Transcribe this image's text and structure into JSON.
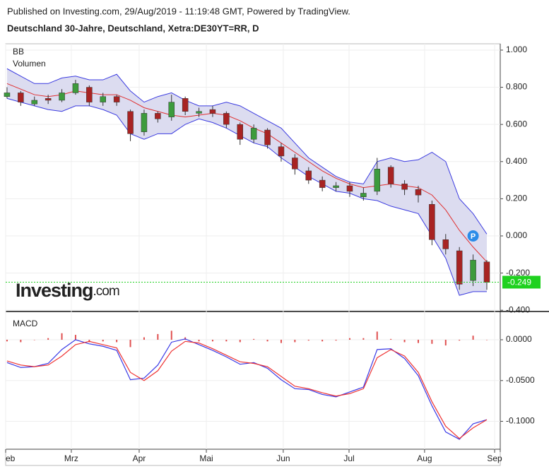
{
  "header": {
    "published": "Published on Investing.com, 29/Aug/2019 - 11:19:48 GMT, Powered by TradingView.",
    "symbol": "Deutschland 30-Jahre, Deutschland, Xetra:DE30YT=RR, D"
  },
  "logo": {
    "brand": "Investing",
    "suffix": ".com"
  },
  "chart_data": [
    {
      "type": "candlestick",
      "labels": [
        "BB",
        "Volumen"
      ],
      "x": [
        0,
        1,
        2,
        3,
        4,
        5,
        6,
        7,
        8,
        9,
        10,
        11,
        12,
        13,
        14,
        15,
        16,
        17,
        18,
        19,
        20,
        21,
        22,
        23,
        24,
        25,
        26,
        27,
        28,
        29,
        30,
        31,
        32,
        33,
        34,
        35
      ],
      "open": [
        0.75,
        0.77,
        0.71,
        0.74,
        0.73,
        0.77,
        0.8,
        0.72,
        0.75,
        0.67,
        0.56,
        0.66,
        0.64,
        0.74,
        0.66,
        0.68,
        0.66,
        0.6,
        0.52,
        0.57,
        0.48,
        0.42,
        0.35,
        0.3,
        0.26,
        0.27,
        0.21,
        0.24,
        0.37,
        0.28,
        0.25,
        0.17,
        -0.02,
        -0.08,
        -0.24,
        -0.14
      ],
      "high": [
        0.8,
        0.78,
        0.75,
        0.76,
        0.79,
        0.84,
        0.81,
        0.77,
        0.76,
        0.68,
        0.68,
        0.67,
        0.76,
        0.75,
        0.69,
        0.7,
        0.67,
        0.61,
        0.6,
        0.58,
        0.5,
        0.44,
        0.37,
        0.32,
        0.29,
        0.29,
        0.26,
        0.42,
        0.38,
        0.3,
        0.27,
        0.19,
        0.01,
        -0.06,
        -0.1,
        -0.13
      ],
      "low": [
        0.74,
        0.7,
        0.7,
        0.71,
        0.72,
        0.76,
        0.7,
        0.7,
        0.7,
        0.51,
        0.54,
        0.61,
        0.62,
        0.65,
        0.64,
        0.64,
        0.58,
        0.49,
        0.5,
        0.47,
        0.4,
        0.33,
        0.28,
        0.24,
        0.24,
        0.21,
        0.19,
        0.22,
        0.26,
        0.22,
        0.18,
        -0.05,
        -0.1,
        -0.29,
        -0.27,
        -0.29
      ],
      "close": [
        0.77,
        0.72,
        0.73,
        0.73,
        0.77,
        0.82,
        0.72,
        0.75,
        0.72,
        0.55,
        0.66,
        0.63,
        0.72,
        0.67,
        0.67,
        0.66,
        0.6,
        0.52,
        0.58,
        0.49,
        0.43,
        0.36,
        0.3,
        0.26,
        0.27,
        0.24,
        0.23,
        0.36,
        0.28,
        0.25,
        0.22,
        -0.02,
        -0.07,
        -0.26,
        -0.13,
        -0.25
      ],
      "up_color": "#3d9b3d",
      "down_color": "#a82323",
      "bb_upper": [
        0.9,
        0.86,
        0.82,
        0.82,
        0.85,
        0.86,
        0.84,
        0.84,
        0.87,
        0.78,
        0.72,
        0.75,
        0.77,
        0.73,
        0.7,
        0.7,
        0.72,
        0.7,
        0.66,
        0.62,
        0.58,
        0.5,
        0.42,
        0.37,
        0.32,
        0.29,
        0.28,
        0.4,
        0.42,
        0.4,
        0.41,
        0.45,
        0.4,
        0.2,
        0.12,
        0.01
      ],
      "bb_middle": [
        0.82,
        0.79,
        0.76,
        0.75,
        0.76,
        0.78,
        0.77,
        0.76,
        0.76,
        0.73,
        0.69,
        0.67,
        0.65,
        0.64,
        0.65,
        0.66,
        0.65,
        0.62,
        0.58,
        0.55,
        0.5,
        0.45,
        0.4,
        0.35,
        0.31,
        0.28,
        0.26,
        0.27,
        0.28,
        0.27,
        0.26,
        0.22,
        0.14,
        0.03,
        -0.06,
        -0.14
      ],
      "bb_lower": [
        0.74,
        0.72,
        0.7,
        0.68,
        0.67,
        0.7,
        0.7,
        0.68,
        0.65,
        0.55,
        0.52,
        0.55,
        0.55,
        0.6,
        0.63,
        0.61,
        0.58,
        0.54,
        0.5,
        0.48,
        0.42,
        0.37,
        0.32,
        0.28,
        0.24,
        0.23,
        0.2,
        0.19,
        0.16,
        0.14,
        0.12,
        0.0,
        -0.12,
        -0.32,
        -0.3,
        -0.3
      ],
      "band_color": "#3b3be0",
      "middle_color": "#e03030",
      "band_fill": "#dcdcf0",
      "last": -0.249,
      "last_color": "#1fd11f",
      "marker": {
        "label": "P",
        "x": 34,
        "y": 0.0
      },
      "ylim": [
        -0.403,
        1.034
      ],
      "yticks": [
        {
          "value": 1.0,
          "label": "1.000"
        },
        {
          "value": 0.8,
          "label": "0.800"
        },
        {
          "value": 0.6,
          "label": "0.600"
        },
        {
          "value": 0.4,
          "label": "0.400"
        },
        {
          "value": 0.2,
          "label": "0.200"
        },
        {
          "value": 0.0,
          "label": "0.000"
        },
        {
          "value": -0.2,
          "label": "-0.200"
        },
        {
          "value": -0.4,
          "label": "-0.400"
        }
      ],
      "xlim": [
        -0.1,
        35.98
      ],
      "xticks": [
        {
          "value": -0.1,
          "label": "eb"
        },
        {
          "value": 4.69,
          "label": "Mrz"
        },
        {
          "value": 9.64,
          "label": "Apr"
        },
        {
          "value": 14.54,
          "label": "Mai"
        },
        {
          "value": 20.15,
          "label": "Jun"
        },
        {
          "value": 24.95,
          "label": "Jul"
        },
        {
          "value": 30.46,
          "label": "Aug"
        },
        {
          "value": 35.57,
          "label": "Sep"
        }
      ],
      "grid": true
    },
    {
      "type": "macd",
      "label": "MACD",
      "macd": [
        -0.028,
        -0.034,
        -0.033,
        -0.029,
        -0.012,
        0.0,
        -0.005,
        -0.008,
        -0.013,
        -0.049,
        -0.047,
        -0.031,
        -0.003,
        0.001,
        -0.006,
        -0.013,
        -0.021,
        -0.03,
        -0.028,
        -0.035,
        -0.049,
        -0.06,
        -0.061,
        -0.067,
        -0.07,
        -0.064,
        -0.058,
        -0.012,
        -0.011,
        -0.023,
        -0.044,
        -0.081,
        -0.113,
        -0.122,
        -0.103,
        -0.098
      ],
      "signal": [
        -0.026,
        -0.031,
        -0.033,
        -0.031,
        -0.02,
        -0.006,
        -0.002,
        -0.006,
        -0.01,
        -0.04,
        -0.05,
        -0.038,
        -0.014,
        -0.002,
        -0.004,
        -0.011,
        -0.019,
        -0.027,
        -0.029,
        -0.033,
        -0.045,
        -0.057,
        -0.06,
        -0.065,
        -0.069,
        -0.066,
        -0.06,
        -0.022,
        -0.012,
        -0.02,
        -0.04,
        -0.076,
        -0.106,
        -0.121,
        -0.108,
        -0.098
      ],
      "histogram": [
        -0.002,
        -0.003,
        0.0,
        0.002,
        0.008,
        0.006,
        -0.003,
        -0.002,
        -0.003,
        -0.009,
        0.003,
        0.007,
        0.011,
        0.003,
        -0.002,
        -0.002,
        -0.002,
        -0.003,
        0.001,
        -0.002,
        -0.004,
        -0.003,
        -0.001,
        -0.002,
        -0.001,
        0.002,
        0.002,
        0.01,
        0.001,
        -0.003,
        -0.004,
        -0.005,
        -0.007,
        -0.001,
        0.005,
        0.0
      ],
      "macd_color": "#3a3ae6",
      "signal_color": "#ee3333",
      "hist_color": "#e05050",
      "ylim": [
        -0.1333,
        0.0329
      ],
      "yticks": [
        {
          "value": 0.0,
          "label": "0.0000"
        },
        {
          "value": -0.05,
          "label": "-0.0500"
        },
        {
          "value": -0.1,
          "label": "-0.1000"
        }
      ]
    }
  ]
}
